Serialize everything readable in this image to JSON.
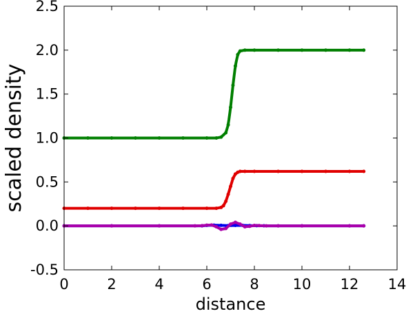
{
  "chart_data": {
    "type": "line",
    "title": "",
    "xlabel": "distance",
    "ylabel": "scaled density",
    "xlim": [
      0,
      14
    ],
    "ylim": [
      -0.5,
      2.5
    ],
    "xticks": [
      "0",
      "2",
      "4",
      "6",
      "8",
      "10",
      "12",
      "14"
    ],
    "yticks": [
      "-0.5",
      "0.0",
      "0.5",
      "1.0",
      "1.5",
      "2.0",
      "2.5"
    ],
    "grid": false,
    "legend": "none",
    "series": [
      {
        "color": "#007f00",
        "marker": "dot",
        "x": [
          0,
          1,
          2,
          3,
          4,
          5,
          6,
          6.4,
          6.6,
          6.8,
          6.9,
          7.0,
          7.1,
          7.2,
          7.3,
          7.4,
          7.6,
          8,
          9,
          10,
          11,
          12,
          12.6
        ],
        "y": [
          1.0,
          1.0,
          1.0,
          1.0,
          1.0,
          1.0,
          1.0,
          1.0,
          1.01,
          1.06,
          1.15,
          1.35,
          1.6,
          1.82,
          1.95,
          1.99,
          2.0,
          2.0,
          2.0,
          2.0,
          2.0,
          2.0,
          2.0
        ]
      },
      {
        "color": "#e00000",
        "marker": "dot",
        "x": [
          0,
          1,
          2,
          3,
          4,
          5,
          6,
          6.4,
          6.6,
          6.7,
          6.8,
          6.9,
          7.0,
          7.1,
          7.2,
          7.3,
          7.4,
          7.6,
          8,
          9,
          10,
          11,
          12,
          12.6
        ],
        "y": [
          0.2,
          0.2,
          0.2,
          0.2,
          0.2,
          0.2,
          0.2,
          0.2,
          0.21,
          0.23,
          0.28,
          0.36,
          0.45,
          0.54,
          0.59,
          0.61,
          0.62,
          0.62,
          0.62,
          0.62,
          0.62,
          0.62,
          0.62,
          0.62
        ]
      },
      {
        "color": "#0000ee",
        "marker": "dot",
        "x": [
          0,
          2,
          4,
          5.8,
          6.0,
          6.3,
          6.6,
          6.9,
          7.2,
          7.5,
          7.8,
          8.1,
          8.4,
          9,
          10,
          12,
          12.6
        ],
        "y": [
          0,
          0,
          0,
          0,
          0.005,
          0.008,
          0.006,
          0.003,
          0.005,
          0.006,
          0.003,
          0.002,
          0.001,
          0,
          0,
          0,
          0
        ]
      },
      {
        "color": "#aa00aa",
        "marker": "dot",
        "x": [
          0,
          2,
          4,
          5.5,
          5.8,
          6.0,
          6.2,
          6.4,
          6.6,
          6.8,
          7.0,
          7.2,
          7.4,
          7.6,
          7.8,
          8.0,
          8.2,
          8.5,
          9,
          10,
          12,
          12.6
        ],
        "y": [
          0,
          0,
          0,
          0,
          0.002,
          0.008,
          0.01,
          -0.01,
          -0.04,
          -0.03,
          0.02,
          0.04,
          0.02,
          -0.01,
          -0.005,
          0.005,
          0.003,
          0,
          0,
          0,
          0,
          0
        ]
      }
    ]
  }
}
